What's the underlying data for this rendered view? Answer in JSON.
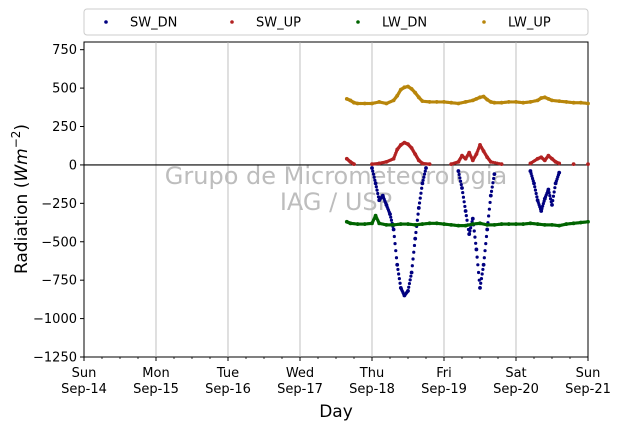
{
  "chart_data": {
    "type": "scatter",
    "title": "",
    "xlabel": "Day",
    "ylabel_prefix": "Radiation (",
    "ylabel_math": "Wm",
    "ylabel_sup": "−2",
    "ylabel_suffix": ")",
    "xlim": [
      0,
      7
    ],
    "ylim": [
      -1250,
      800
    ],
    "yticks": [
      -1250,
      -1000,
      -750,
      -500,
      -250,
      0,
      250,
      500,
      750
    ],
    "ytick_labels": [
      "−1250",
      "−1000",
      "−750",
      "−500",
      "−250",
      "0",
      "250",
      "500",
      "750"
    ],
    "xticks": [
      {
        "x": 0,
        "day": "Sun",
        "date": "Sep-14"
      },
      {
        "x": 1,
        "day": "Mon",
        "date": "Sep-15"
      },
      {
        "x": 2,
        "day": "Tue",
        "date": "Sep-16"
      },
      {
        "x": 3,
        "day": "Wed",
        "date": "Sep-17"
      },
      {
        "x": 4,
        "day": "Thu",
        "date": "Sep-18"
      },
      {
        "x": 5,
        "day": "Fri",
        "date": "Sep-19"
      },
      {
        "x": 6,
        "day": "Sat",
        "date": "Sep-20"
      },
      {
        "x": 7,
        "day": "Sun",
        "date": "Sep-21"
      }
    ],
    "grid_x": true,
    "zero_line": true,
    "legend_position": "top",
    "watermark": [
      "Grupo de Micrometeorologia",
      "IAG / USP"
    ],
    "series": [
      {
        "name": "SW_DN",
        "color": "#000080",
        "points": [
          [
            4.0,
            -20
          ],
          [
            4.05,
            -120
          ],
          [
            4.1,
            -230
          ],
          [
            4.15,
            -200
          ],
          [
            4.2,
            -260
          ],
          [
            4.25,
            -320
          ],
          [
            4.3,
            -420
          ],
          [
            4.35,
            -650
          ],
          [
            4.4,
            -800
          ],
          [
            4.45,
            -850
          ],
          [
            4.5,
            -820
          ],
          [
            4.55,
            -700
          ],
          [
            4.6,
            -480
          ],
          [
            4.65,
            -280
          ],
          [
            4.7,
            -120
          ],
          [
            4.75,
            -20
          ],
          [
            5.2,
            -40
          ],
          [
            5.25,
            -150
          ],
          [
            5.3,
            -300
          ],
          [
            5.35,
            -450
          ],
          [
            5.4,
            -350
          ],
          [
            5.45,
            -550
          ],
          [
            5.5,
            -800
          ],
          [
            5.55,
            -650
          ],
          [
            5.6,
            -420
          ],
          [
            5.65,
            -200
          ],
          [
            5.7,
            -60
          ],
          [
            6.2,
            -40
          ],
          [
            6.25,
            -120
          ],
          [
            6.3,
            -230
          ],
          [
            6.35,
            -300
          ],
          [
            6.4,
            -220
          ],
          [
            6.45,
            -160
          ],
          [
            6.5,
            -260
          ],
          [
            6.55,
            -120
          ],
          [
            6.6,
            -50
          ]
        ]
      },
      {
        "name": "SW_UP",
        "color": "#b22222",
        "points": [
          [
            3.65,
            40
          ],
          [
            3.7,
            20
          ],
          [
            3.75,
            5
          ],
          [
            4.0,
            5
          ],
          [
            4.1,
            10
          ],
          [
            4.2,
            20
          ],
          [
            4.3,
            40
          ],
          [
            4.35,
            100
          ],
          [
            4.4,
            130
          ],
          [
            4.45,
            145
          ],
          [
            4.5,
            135
          ],
          [
            4.55,
            110
          ],
          [
            4.6,
            70
          ],
          [
            4.65,
            30
          ],
          [
            4.7,
            10
          ],
          [
            4.8,
            5
          ],
          [
            5.1,
            5
          ],
          [
            5.2,
            20
          ],
          [
            5.25,
            60
          ],
          [
            5.3,
            40
          ],
          [
            5.35,
            80
          ],
          [
            5.4,
            30
          ],
          [
            5.45,
            70
          ],
          [
            5.5,
            130
          ],
          [
            5.55,
            90
          ],
          [
            5.6,
            50
          ],
          [
            5.65,
            20
          ],
          [
            5.8,
            5
          ],
          [
            6.2,
            10
          ],
          [
            6.3,
            40
          ],
          [
            6.35,
            50
          ],
          [
            6.4,
            30
          ],
          [
            6.45,
            60
          ],
          [
            6.5,
            40
          ],
          [
            6.55,
            20
          ],
          [
            6.6,
            10
          ],
          [
            6.8,
            5
          ],
          [
            7.0,
            5
          ]
        ]
      },
      {
        "name": "LW_DN",
        "color": "#006400",
        "points": [
          [
            3.65,
            -370
          ],
          [
            3.7,
            -380
          ],
          [
            3.8,
            -385
          ],
          [
            3.9,
            -385
          ],
          [
            4.0,
            -380
          ],
          [
            4.05,
            -330
          ],
          [
            4.1,
            -380
          ],
          [
            4.2,
            -390
          ],
          [
            4.3,
            -390
          ],
          [
            4.4,
            -385
          ],
          [
            4.5,
            -385
          ],
          [
            4.6,
            -390
          ],
          [
            4.7,
            -385
          ],
          [
            4.8,
            -380
          ],
          [
            4.9,
            -380
          ],
          [
            5.0,
            -385
          ],
          [
            5.1,
            -390
          ],
          [
            5.2,
            -395
          ],
          [
            5.3,
            -395
          ],
          [
            5.4,
            -385
          ],
          [
            5.5,
            -380
          ],
          [
            5.6,
            -390
          ],
          [
            5.7,
            -390
          ],
          [
            5.8,
            -385
          ],
          [
            5.9,
            -385
          ],
          [
            6.0,
            -385
          ],
          [
            6.1,
            -385
          ],
          [
            6.2,
            -380
          ],
          [
            6.3,
            -385
          ],
          [
            6.4,
            -390
          ],
          [
            6.5,
            -390
          ],
          [
            6.6,
            -395
          ],
          [
            6.7,
            -385
          ],
          [
            6.8,
            -380
          ],
          [
            6.9,
            -375
          ],
          [
            7.0,
            -370
          ]
        ]
      },
      {
        "name": "LW_UP",
        "color": "#b8860b",
        "points": [
          [
            3.65,
            430
          ],
          [
            3.7,
            420
          ],
          [
            3.75,
            405
          ],
          [
            3.8,
            400
          ],
          [
            3.9,
            400
          ],
          [
            4.0,
            400
          ],
          [
            4.1,
            410
          ],
          [
            4.2,
            400
          ],
          [
            4.3,
            420
          ],
          [
            4.35,
            450
          ],
          [
            4.4,
            490
          ],
          [
            4.45,
            505
          ],
          [
            4.5,
            510
          ],
          [
            4.55,
            495
          ],
          [
            4.6,
            470
          ],
          [
            4.65,
            440
          ],
          [
            4.7,
            415
          ],
          [
            4.8,
            410
          ],
          [
            4.9,
            410
          ],
          [
            5.0,
            410
          ],
          [
            5.1,
            405
          ],
          [
            5.2,
            400
          ],
          [
            5.3,
            410
          ],
          [
            5.4,
            420
          ],
          [
            5.45,
            430
          ],
          [
            5.5,
            440
          ],
          [
            5.55,
            445
          ],
          [
            5.6,
            425
          ],
          [
            5.65,
            410
          ],
          [
            5.7,
            405
          ],
          [
            5.8,
            405
          ],
          [
            5.9,
            410
          ],
          [
            6.0,
            410
          ],
          [
            6.1,
            405
          ],
          [
            6.2,
            410
          ],
          [
            6.3,
            420
          ],
          [
            6.35,
            435
          ],
          [
            6.4,
            440
          ],
          [
            6.45,
            430
          ],
          [
            6.5,
            420
          ],
          [
            6.6,
            415
          ],
          [
            6.7,
            410
          ],
          [
            6.8,
            405
          ],
          [
            6.9,
            405
          ],
          [
            7.0,
            400
          ]
        ]
      }
    ]
  }
}
